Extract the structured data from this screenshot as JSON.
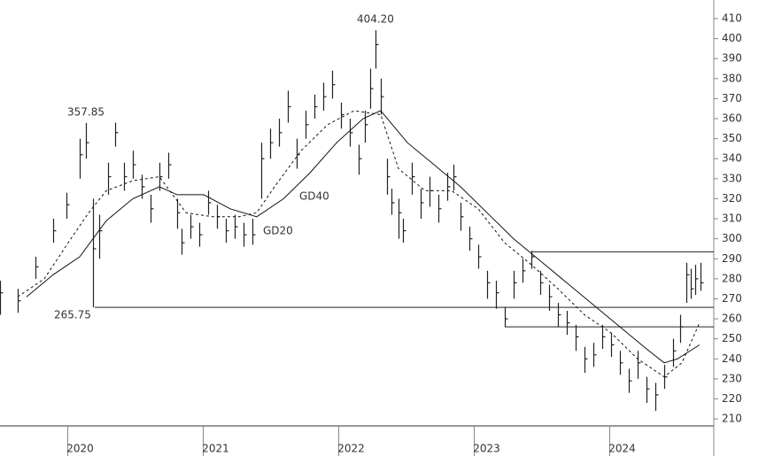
{
  "chart_data": {
    "type": "ohlc",
    "xlim": [
      2019.5,
      2024.768
    ],
    "ylim": [
      206.5,
      419.3
    ],
    "xticks": [
      2020,
      2021,
      2022,
      2023,
      2024
    ],
    "yticks": [
      210,
      220,
      230,
      240,
      250,
      260,
      270,
      280,
      290,
      300,
      310,
      320,
      330,
      340,
      350,
      360,
      370,
      380,
      390,
      400,
      410
    ],
    "bars": {
      "color": "#222222",
      "x": [
        2019.5,
        2019.631,
        2019.761,
        2019.892,
        2019.99,
        2020.088,
        2020.134,
        2020.186,
        2020.232,
        2020.297,
        2020.35,
        2020.415,
        2020.48,
        2020.546,
        2020.611,
        2020.676,
        2020.742,
        2020.807,
        2020.84,
        2020.905,
        2020.971,
        2021.036,
        2021.101,
        2021.167,
        2021.232,
        2021.297,
        2021.363,
        2021.428,
        2021.493,
        2021.559,
        2021.624,
        2021.69,
        2021.755,
        2021.82,
        2021.886,
        2021.951,
        2022.016,
        2022.082,
        2022.147,
        2022.193,
        2022.232,
        2022.271,
        2022.31,
        2022.356,
        2022.389,
        2022.441,
        2022.474,
        2022.539,
        2022.605,
        2022.67,
        2022.735,
        2022.801,
        2022.846,
        2022.899,
        2022.964,
        2023.029,
        2023.095,
        2023.16,
        2023.225,
        2023.291,
        2023.356,
        2023.422,
        2023.487,
        2023.552,
        2023.618,
        2023.683,
        2023.748,
        2023.814,
        2023.879,
        2023.944,
        2024.01,
        2024.075,
        2024.141,
        2024.206,
        2024.271,
        2024.337,
        2024.402,
        2024.467,
        2024.52,
        2024.565,
        2024.598,
        2024.631,
        2024.67
      ],
      "high": [
        279,
        275,
        291,
        310,
        323,
        350,
        357.85,
        320,
        312,
        338,
        358,
        338,
        344,
        332,
        322,
        338,
        343,
        320,
        305,
        312,
        308,
        324,
        317,
        310,
        312,
        308,
        310,
        348,
        355,
        360,
        374,
        350,
        364,
        372,
        378,
        384,
        368,
        360,
        347,
        364,
        385,
        404.2,
        380,
        340,
        325,
        320,
        310,
        338,
        325,
        331,
        322,
        333,
        337,
        318,
        306,
        297,
        284,
        279,
        266,
        284,
        290,
        294,
        284,
        277,
        268,
        264,
        257,
        246,
        248,
        257,
        253,
        244,
        235,
        244,
        231,
        228,
        237,
        250,
        262,
        288,
        285,
        287,
        288
      ],
      "low": [
        262,
        263,
        280,
        298,
        310,
        330,
        340,
        265.75,
        290,
        322,
        346,
        324,
        330,
        320,
        308,
        324,
        330,
        305,
        292,
        300,
        296,
        312,
        305,
        298,
        300,
        296,
        297,
        320,
        340,
        346,
        358,
        335,
        350,
        360,
        364,
        370,
        355,
        346,
        332,
        348,
        365,
        385,
        362,
        322,
        312,
        300,
        298,
        322,
        310,
        316,
        308,
        319,
        324,
        304,
        294,
        285,
        270,
        265,
        256,
        270,
        278,
        285,
        272,
        264,
        256,
        252,
        244,
        233,
        236,
        245,
        241,
        232,
        223,
        230,
        218,
        214,
        225,
        236,
        248,
        268,
        270,
        272,
        274
      ],
      "close": [
        273,
        269,
        286,
        304,
        317,
        342,
        348,
        295,
        304,
        331,
        353,
        331,
        337,
        326,
        315,
        331,
        337,
        313,
        298,
        306,
        302,
        318,
        311,
        304,
        306,
        302,
        302,
        340,
        348,
        353,
        366,
        342,
        357,
        366,
        371,
        377,
        362,
        353,
        340,
        357,
        375,
        397,
        371,
        331,
        318,
        313,
        304,
        331,
        318,
        324,
        315,
        326,
        331,
        311,
        300,
        291,
        278,
        273,
        260,
        278,
        284,
        291,
        278,
        271,
        262,
        258,
        251,
        240,
        242,
        251,
        247,
        238,
        229,
        238,
        225,
        222,
        231,
        244,
        256,
        282,
        275,
        280,
        278
      ]
    },
    "series": [
      {
        "name": "GD40",
        "color": "#111111",
        "dashed": false,
        "x": [
          2019.696,
          2019.892,
          2020.088,
          2020.284,
          2020.48,
          2020.676,
          2020.807,
          2021.003,
          2021.199,
          2021.395,
          2021.592,
          2021.788,
          2021.984,
          2022.18,
          2022.31,
          2022.507,
          2022.703,
          2022.899,
          2023.095,
          2023.291,
          2023.487,
          2023.683,
          2023.879,
          2024.075,
          2024.271,
          2024.402,
          2024.5,
          2024.663
        ],
        "values": [
          271,
          282,
          291,
          309,
          320,
          326,
          322,
          322,
          315,
          311,
          320,
          333,
          348,
          360,
          364,
          348,
          337,
          326,
          313,
          300,
          289,
          278,
          267,
          256,
          245,
          238,
          240,
          247
        ]
      },
      {
        "name": "GD20",
        "color": "#111111",
        "dashed": true,
        "x": [
          2019.631,
          2019.827,
          2020.023,
          2020.154,
          2020.284,
          2020.48,
          2020.676,
          2020.873,
          2021.069,
          2021.265,
          2021.395,
          2021.526,
          2021.722,
          2021.918,
          2022.114,
          2022.31,
          2022.441,
          2022.637,
          2022.833,
          2023.029,
          2023.225,
          2023.422,
          2023.618,
          2023.814,
          2024.01,
          2024.206,
          2024.402,
          2024.533,
          2024.663
        ],
        "values": [
          271,
          280,
          300,
          313,
          324,
          329,
          331,
          313,
          311,
          311,
          313,
          326,
          344,
          357,
          364,
          362,
          335,
          324,
          324,
          315,
          298,
          287,
          275,
          262,
          253,
          240,
          231,
          238,
          258
        ]
      }
    ],
    "levels": [
      {
        "value": 293.5,
        "from": 2023.422
      },
      {
        "value": 265.75,
        "from": 2020.199
      },
      {
        "value": 256,
        "from": 2023.225
      }
    ],
    "annotations": [
      {
        "x": 2020.134,
        "value": 357.85,
        "label": "357.85",
        "position": "above"
      },
      {
        "x": 2022.271,
        "value": 404.2,
        "label": "404.20",
        "position": "above"
      },
      {
        "x": 2020.199,
        "value": 265.75,
        "label": "265.75",
        "position": "below-left"
      }
    ]
  }
}
